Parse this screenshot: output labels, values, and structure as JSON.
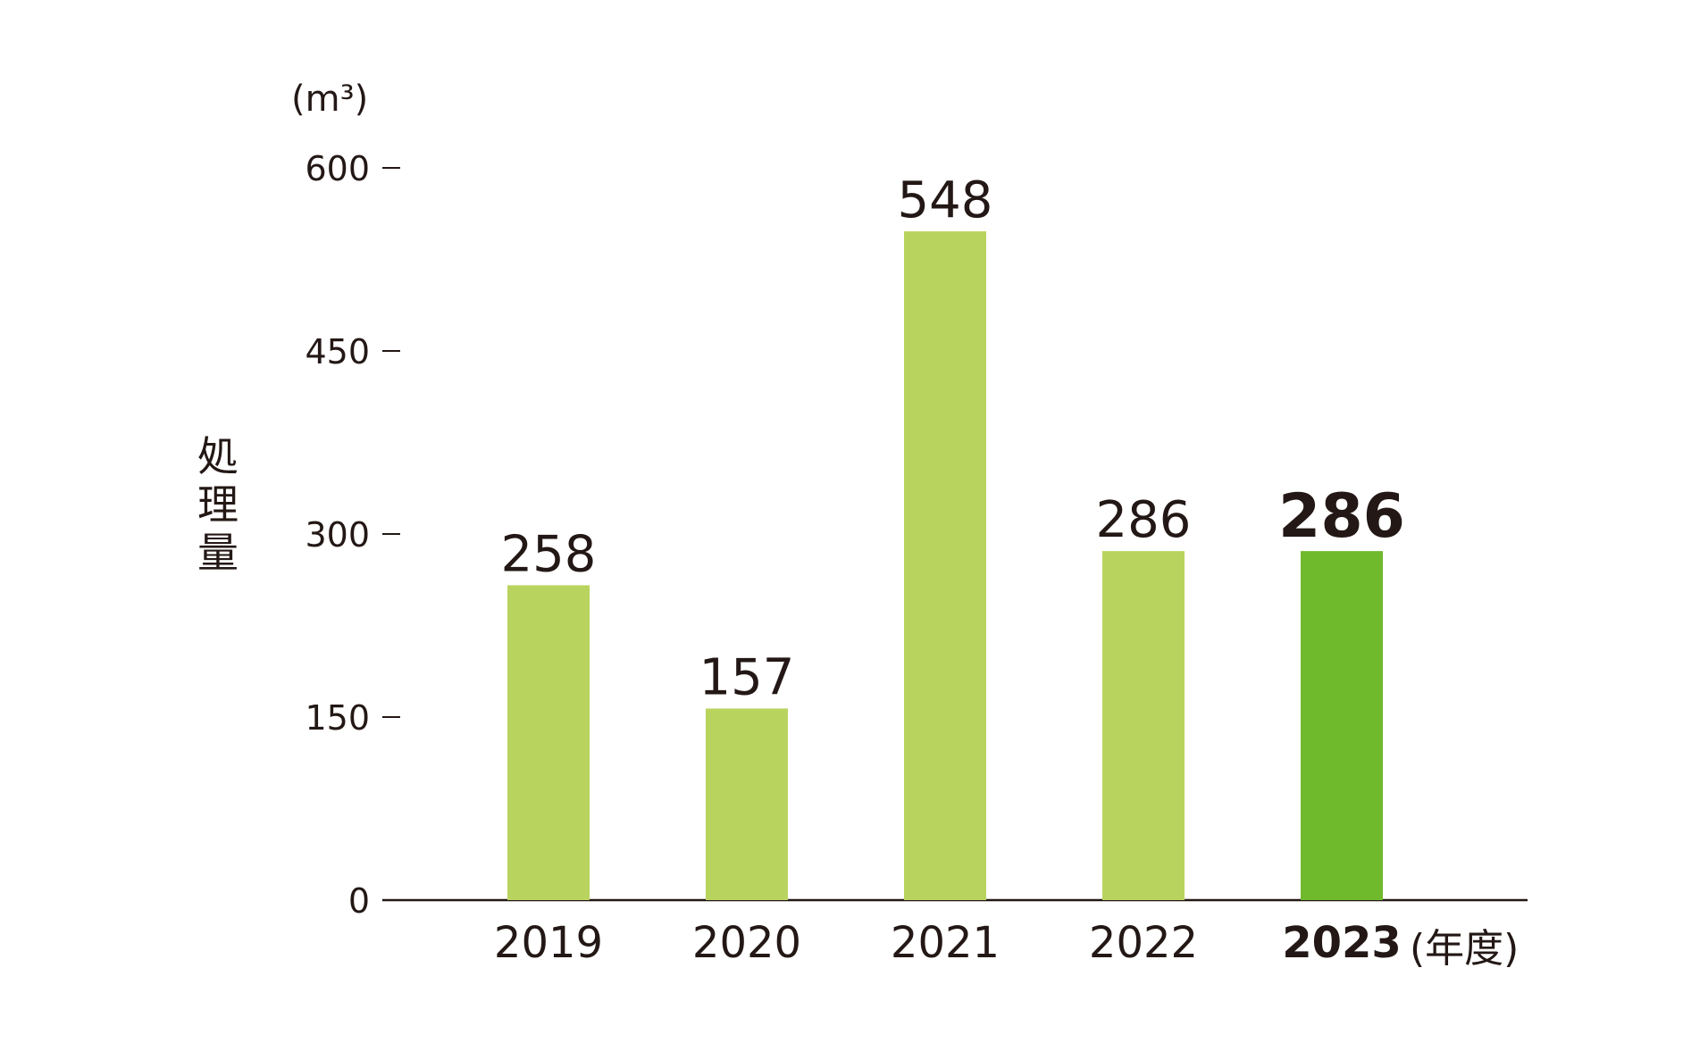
{
  "chart_data": {
    "type": "bar",
    "categories": [
      "2019",
      "2020",
      "2021",
      "2022",
      "2023"
    ],
    "values": [
      258,
      157,
      548,
      286,
      286
    ],
    "highlight_index": 4,
    "ylabel": "処理量",
    "unit": "(m³)",
    "xunit": "(年度)",
    "yticks": [
      "0",
      "150",
      "300",
      "450",
      "600"
    ],
    "ylim": [
      0,
      600
    ],
    "grid": false,
    "colors": {
      "bar": "#b9d45e",
      "highlight": "#6fba2c",
      "axis": "#231815"
    }
  }
}
